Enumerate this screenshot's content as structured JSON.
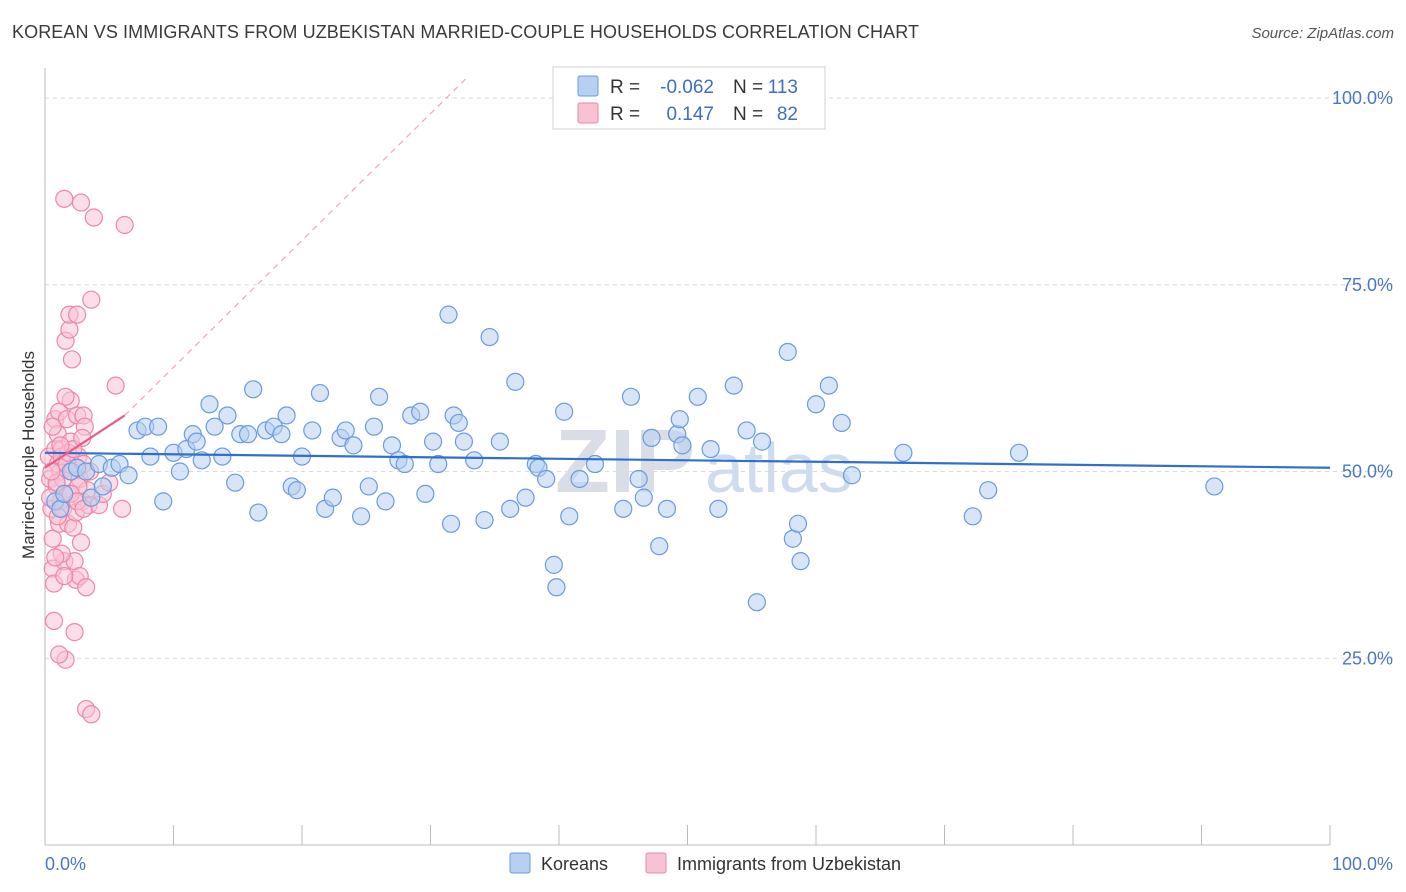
{
  "title": "KOREAN VS IMMIGRANTS FROM UZBEKISTAN MARRIED-COUPLE HOUSEHOLDS CORRELATION CHART",
  "source": "Source: ZipAtlas.com",
  "watermark": {
    "zip": "ZIP",
    "atlas": "atlas"
  },
  "colors": {
    "koreans": "#6a9be0",
    "koreans_fill": "#b7cff0",
    "uzbek": "#ee86a9",
    "uzbek_fill": "#f7c3d4",
    "axis_labels": "#4a78c2"
  },
  "legend": {
    "rows": [
      {
        "r_label": "R =",
        "r_value": "-0.062",
        "n_label": "N =",
        "n_value": "113"
      },
      {
        "r_label": "R =",
        "r_value": "0.147",
        "n_label": "N =",
        "n_value": "82"
      }
    ]
  },
  "bottom_legend": [
    "Koreans",
    "Immigrants from Uzbekistan"
  ],
  "chart_data": {
    "type": "scatter",
    "title": "KOREAN VS IMMIGRANTS FROM UZBEKISTAN MARRIED-COUPLE HOUSEHOLDS CORRELATION CHART",
    "xlabel": "",
    "ylabel": "Married-couple Households",
    "xlim": [
      0,
      100
    ],
    "ylim": [
      0,
      100
    ],
    "x_tick_labels": [
      "0.0%",
      "100.0%"
    ],
    "y_tick_labels": [
      "100.0%",
      "75.0%",
      "50.0%",
      "25.0%"
    ],
    "y_ticks": [
      100,
      75,
      50,
      25
    ],
    "grid": true,
    "legend_position": "top-center",
    "series": [
      {
        "name": "Koreans",
        "trend": {
          "x": [
            0,
            100
          ],
          "y": [
            52.5,
            50.5
          ]
        },
        "points": [
          [
            0.8,
            46
          ],
          [
            1.2,
            45
          ],
          [
            1.5,
            47
          ],
          [
            2.0,
            50
          ],
          [
            2.5,
            50.5
          ],
          [
            3.2,
            50
          ],
          [
            3.6,
            46.5
          ],
          [
            4.2,
            51
          ],
          [
            4.5,
            48
          ],
          [
            5.2,
            50.5
          ],
          [
            5.8,
            51
          ],
          [
            6.5,
            49.5
          ],
          [
            7.2,
            55.5
          ],
          [
            7.8,
            56
          ],
          [
            8.2,
            52
          ],
          [
            8.8,
            56
          ],
          [
            9.2,
            46
          ],
          [
            10.0,
            52.5
          ],
          [
            10.5,
            50
          ],
          [
            11.0,
            53
          ],
          [
            11.5,
            55
          ],
          [
            11.8,
            54
          ],
          [
            12.2,
            51.5
          ],
          [
            12.8,
            59
          ],
          [
            13.2,
            56
          ],
          [
            13.8,
            52
          ],
          [
            14.2,
            57.5
          ],
          [
            14.8,
            48.5
          ],
          [
            15.2,
            55
          ],
          [
            15.8,
            55
          ],
          [
            16.2,
            61
          ],
          [
            16.6,
            44.5
          ],
          [
            17.2,
            55.5
          ],
          [
            17.8,
            56
          ],
          [
            18.4,
            55
          ],
          [
            18.8,
            57.5
          ],
          [
            19.2,
            48
          ],
          [
            19.6,
            47.5
          ],
          [
            20.0,
            52
          ],
          [
            20.8,
            55.5
          ],
          [
            21.4,
            60.5
          ],
          [
            21.8,
            45
          ],
          [
            22.4,
            46.5
          ],
          [
            23.0,
            54.5
          ],
          [
            23.4,
            55.5
          ],
          [
            24.0,
            53.5
          ],
          [
            24.6,
            44
          ],
          [
            25.2,
            48
          ],
          [
            25.6,
            56
          ],
          [
            26.0,
            60
          ],
          [
            26.5,
            46
          ],
          [
            27.0,
            53.5
          ],
          [
            27.5,
            51.5
          ],
          [
            28.0,
            51
          ],
          [
            28.5,
            57.5
          ],
          [
            29.2,
            58
          ],
          [
            29.6,
            47
          ],
          [
            30.2,
            54
          ],
          [
            30.6,
            51
          ],
          [
            31.4,
            71
          ],
          [
            31.6,
            43
          ],
          [
            31.8,
            57.5
          ],
          [
            32.2,
            56.5
          ],
          [
            32.6,
            54
          ],
          [
            33.4,
            51.5
          ],
          [
            34.2,
            43.5
          ],
          [
            34.6,
            68
          ],
          [
            35.4,
            54
          ],
          [
            36.2,
            45
          ],
          [
            36.6,
            62
          ],
          [
            37.4,
            46.5
          ],
          [
            38.2,
            51
          ],
          [
            38.4,
            50.5
          ],
          [
            39.0,
            49
          ],
          [
            39.6,
            37.5
          ],
          [
            39.8,
            34.5
          ],
          [
            40.4,
            58
          ],
          [
            40.8,
            44
          ],
          [
            41.6,
            49
          ],
          [
            42.8,
            51
          ],
          [
            45.0,
            45
          ],
          [
            45.6,
            60
          ],
          [
            46.2,
            49
          ],
          [
            46.6,
            46.5
          ],
          [
            47.2,
            54.5
          ],
          [
            47.8,
            40
          ],
          [
            48.4,
            45
          ],
          [
            49.2,
            55
          ],
          [
            49.4,
            57
          ],
          [
            49.6,
            53.5
          ],
          [
            50.8,
            60
          ],
          [
            51.8,
            53
          ],
          [
            52.4,
            45
          ],
          [
            53.6,
            61.5
          ],
          [
            54.6,
            55.5
          ],
          [
            55.4,
            32.5
          ],
          [
            55.8,
            54
          ],
          [
            57.8,
            66
          ],
          [
            58.2,
            41
          ],
          [
            58.6,
            43
          ],
          [
            58.8,
            38
          ],
          [
            60.0,
            59
          ],
          [
            61.0,
            61.5
          ],
          [
            62.0,
            56.5
          ],
          [
            62.8,
            49.5
          ],
          [
            66.8,
            52.5
          ],
          [
            72.2,
            44
          ],
          [
            73.4,
            47.5
          ],
          [
            75.8,
            52.5
          ],
          [
            91.0,
            48
          ]
        ]
      },
      {
        "name": "Immigrants from Uzbekistan",
        "trend": {
          "x": [
            0,
            6.2
          ],
          "y": [
            50.5,
            57.5
          ]
        },
        "trend_dashed": {
          "x": [
            6.2,
            33
          ],
          "y": [
            57.5,
            103
          ]
        },
        "points": [
          [
            0.3,
            52
          ],
          [
            0.4,
            49
          ],
          [
            0.5,
            45
          ],
          [
            0.6,
            41
          ],
          [
            0.6,
            37
          ],
          [
            0.7,
            30
          ],
          [
            0.7,
            35
          ],
          [
            0.8,
            53
          ],
          [
            0.8,
            57
          ],
          [
            0.9,
            48
          ],
          [
            1.0,
            51
          ],
          [
            1.0,
            55
          ],
          [
            1.1,
            43
          ],
          [
            1.1,
            58
          ],
          [
            1.2,
            50
          ],
          [
            1.2,
            46
          ],
          [
            1.3,
            53
          ],
          [
            1.3,
            52
          ],
          [
            1.4,
            49
          ],
          [
            1.4,
            45
          ],
          [
            1.5,
            38
          ],
          [
            1.5,
            86.5
          ],
          [
            1.6,
            67.5
          ],
          [
            1.7,
            57
          ],
          [
            1.7,
            51
          ],
          [
            1.8,
            47
          ],
          [
            1.8,
            43
          ],
          [
            1.9,
            69
          ],
          [
            1.9,
            71
          ],
          [
            2.0,
            59.5
          ],
          [
            2.0,
            54
          ],
          [
            2.1,
            65
          ],
          [
            2.1,
            50
          ],
          [
            2.2,
            42.5
          ],
          [
            2.3,
            38
          ],
          [
            2.3,
            28.5
          ],
          [
            2.4,
            44.5
          ],
          [
            2.4,
            35.5
          ],
          [
            2.5,
            71
          ],
          [
            2.5,
            57.5
          ],
          [
            2.6,
            52
          ],
          [
            2.7,
            49
          ],
          [
            2.7,
            36
          ],
          [
            2.8,
            40.5
          ],
          [
            2.8,
            86
          ],
          [
            2.9,
            46
          ],
          [
            3.0,
            57.5
          ],
          [
            3.0,
            51
          ],
          [
            3.1,
            56
          ],
          [
            3.2,
            34.5
          ],
          [
            3.3,
            47.5
          ],
          [
            3.4,
            45.5
          ],
          [
            3.5,
            50
          ],
          [
            3.6,
            73
          ],
          [
            3.8,
            84
          ],
          [
            1.6,
            24.8
          ],
          [
            1.1,
            25.5
          ],
          [
            3.2,
            18.2
          ],
          [
            3.6,
            17.5
          ],
          [
            4.2,
            45.5
          ],
          [
            4.5,
            47
          ],
          [
            5.0,
            48.5
          ],
          [
            5.5,
            61.5
          ],
          [
            6.0,
            45
          ],
          [
            6.2,
            83
          ],
          [
            0.4,
            46.5
          ],
          [
            0.9,
            48.5
          ],
          [
            1.3,
            39
          ],
          [
            1.8,
            52.5
          ],
          [
            2.2,
            53
          ],
          [
            2.6,
            48
          ],
          [
            0.6,
            56
          ],
          [
            1.0,
            44
          ],
          [
            1.6,
            60
          ],
          [
            2.0,
            47
          ],
          [
            2.9,
            54.5
          ],
          [
            0.8,
            38.5
          ],
          [
            1.5,
            36
          ],
          [
            2.5,
            46
          ],
          [
            3.0,
            45
          ],
          [
            0.5,
            50
          ],
          [
            1.2,
            53.5
          ]
        ]
      }
    ]
  }
}
